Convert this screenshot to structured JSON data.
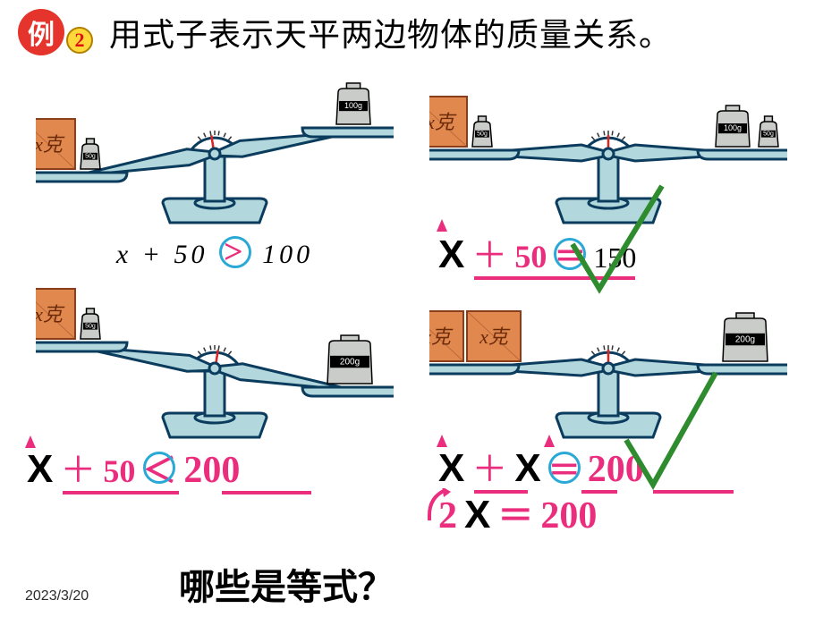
{
  "header": {
    "badge_text": "例",
    "badge_num": "2",
    "title": "用式子表示天平两边物体的质量关系。"
  },
  "colors": {
    "brand_red": "#E4342C",
    "brand_yellow": "#FFD83A",
    "pink": "#EB2D7E",
    "circle_blue": "#2AA8D6",
    "check_green": "#2E8B2E",
    "scale_fill": "#B2D7DD",
    "scale_stroke": "#0B3C5D",
    "box_fill": "#E0884E",
    "box_stroke": "#8A3D1A",
    "weight_fill": "#C9CCC9",
    "weight_stroke": "#000"
  },
  "fonts": {
    "title_family": "KaiTi",
    "title_size_pt": 27,
    "eq_size_pt": 30,
    "bigX_size_pt": 33,
    "date_size_pt": 12,
    "question_size_pt": 30
  },
  "scales": [
    {
      "id": "scale1",
      "tilt_deg": -9,
      "left_pan": [
        {
          "type": "xbox",
          "label": "x克",
          "x": -8
        },
        {
          "type": "weight",
          "size": "small",
          "label": "50g",
          "x": 58
        }
      ],
      "right_pan": [
        {
          "type": "weight",
          "size": "med",
          "label": "100g",
          "x": 28
        }
      ]
    },
    {
      "id": "scale2",
      "tilt_deg": 0,
      "left_pan": [
        {
          "type": "xbox",
          "label": "x克",
          "x": -8
        },
        {
          "type": "weight",
          "size": "small",
          "label": "50g",
          "x": 58
        }
      ],
      "right_pan": [
        {
          "type": "weight",
          "size": "med",
          "label": "100g",
          "x": 10
        },
        {
          "type": "weight",
          "size": "small",
          "label": "50g",
          "x": 58
        }
      ]
    },
    {
      "id": "scale3",
      "tilt_deg": 9,
      "left_pan": [
        {
          "type": "xbox",
          "label": "x克",
          "x": -8
        },
        {
          "type": "weight",
          "size": "small",
          "label": "50g",
          "x": 58
        }
      ],
      "right_pan": [
        {
          "type": "weight",
          "size": "big",
          "label": "200g",
          "x": 18
        }
      ]
    },
    {
      "id": "scale4",
      "tilt_deg": 0,
      "left_pan": [
        {
          "type": "xbox",
          "label": "x克",
          "x": -12
        },
        {
          "type": "xbox",
          "label": "x克",
          "x": 52
        }
      ],
      "right_pan": [
        {
          "type": "weight",
          "size": "big",
          "label": "200g",
          "x": 18
        }
      ]
    }
  ],
  "equations": {
    "eq1": {
      "expr": "x + 50",
      "op": ">",
      "rhs": "100",
      "circle": true
    },
    "eq2": {
      "x": "x",
      "plus": "＋",
      "mid": "50",
      "op": "＝",
      "rhs": "150",
      "circle": true,
      "check": true
    },
    "eq3": {
      "x": "x",
      "plus": "＋",
      "mid": "50",
      "op": "＜",
      "rhs": "200",
      "circle": true
    },
    "eq4a": {
      "x1": "x",
      "plus": "＋",
      "x2": "x",
      "op": "＝",
      "rhs": "200",
      "circle": true,
      "check": true
    },
    "eq4b": {
      "two": "2",
      "x": "x",
      "eq": "＝",
      "rhs": "200"
    }
  },
  "question": "哪些是等式？",
  "date": "2023/3/20"
}
